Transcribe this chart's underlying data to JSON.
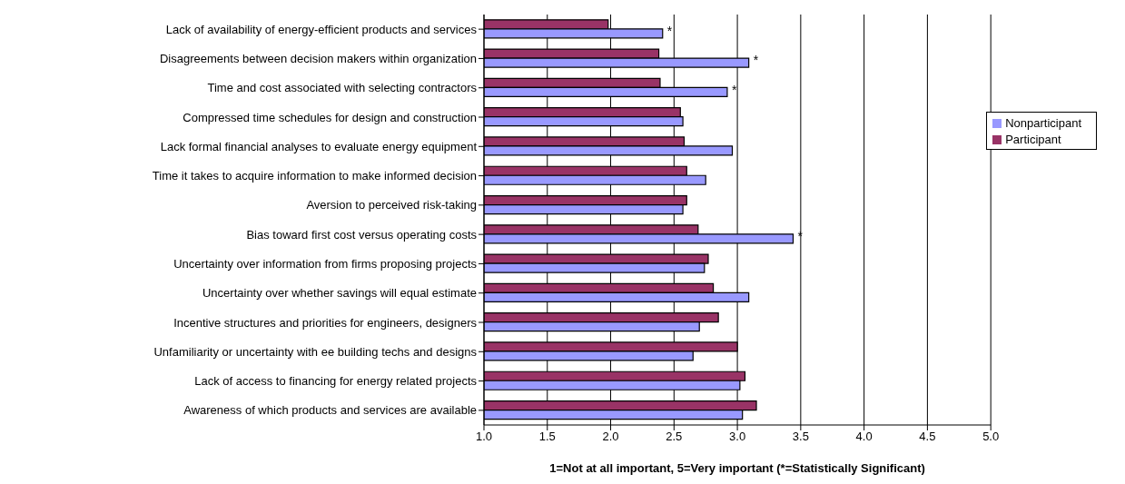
{
  "chart_data": {
    "type": "bar",
    "orientation": "horizontal",
    "xlabel": "1=Not at all important, 5=Very important (*=Statistically Significant)",
    "categories": [
      "Lack of availability of energy-efficient products and services",
      "Disagreements between decision makers within organization",
      "Time and cost associated with selecting contractors",
      "Compressed time schedules for design and construction",
      "Lack formal financial analyses to evaluate energy equipment",
      "Time it takes to acquire information to make informed decision",
      "Aversion to perceived risk-taking",
      "Bias toward first cost versus operating costs",
      "Uncertainty over information from firms proposing projects",
      "Uncertainty over whether savings will equal estimate",
      "Incentive structures and priorities for engineers, designers",
      "Unfamiliarity or uncertainty with ee building techs and designs",
      "Lack of access to financing for energy related projects",
      "Awareness of which products and services are available"
    ],
    "series": [
      {
        "name": "Participant",
        "color": "#993366",
        "values": [
          1.98,
          2.38,
          2.39,
          2.55,
          2.58,
          2.6,
          2.6,
          2.69,
          2.77,
          2.81,
          2.85,
          3.0,
          3.06,
          3.15
        ]
      },
      {
        "name": "Nonparticipant",
        "color": "#9999ff",
        "values": [
          2.41,
          3.09,
          2.92,
          2.57,
          2.96,
          2.75,
          2.57,
          3.44,
          2.74,
          3.09,
          2.7,
          2.65,
          3.02,
          3.04
        ]
      }
    ],
    "xlim": [
      1,
      5
    ],
    "xticks": [
      {
        "value": 1,
        "label": "1.0"
      },
      {
        "value": 1.5,
        "label": "1.5"
      },
      {
        "value": 2,
        "label": "2.0"
      },
      {
        "value": 2.5,
        "label": "2.5"
      },
      {
        "value": 3,
        "label": "3.0"
      },
      {
        "value": 3.5,
        "label": "3.5"
      },
      {
        "value": 4,
        "label": "4.0"
      },
      {
        "value": 4.5,
        "label": "4.5"
      },
      {
        "value": 5,
        "label": "5.0"
      }
    ],
    "grid": "x",
    "legend": "right",
    "annotations": [
      {
        "text": "*",
        "x": 2.41,
        "y": "Lack of availability of energy-efficient products and services"
      },
      {
        "text": "*",
        "x": 3.09,
        "y": "Disagreements between decision makers within organization"
      },
      {
        "text": "*",
        "x": 2.92,
        "y": "Time and cost associated with selecting contractors"
      },
      {
        "text": "*",
        "x": 3.44,
        "y": "Bias toward first cost versus operating costs"
      }
    ]
  }
}
